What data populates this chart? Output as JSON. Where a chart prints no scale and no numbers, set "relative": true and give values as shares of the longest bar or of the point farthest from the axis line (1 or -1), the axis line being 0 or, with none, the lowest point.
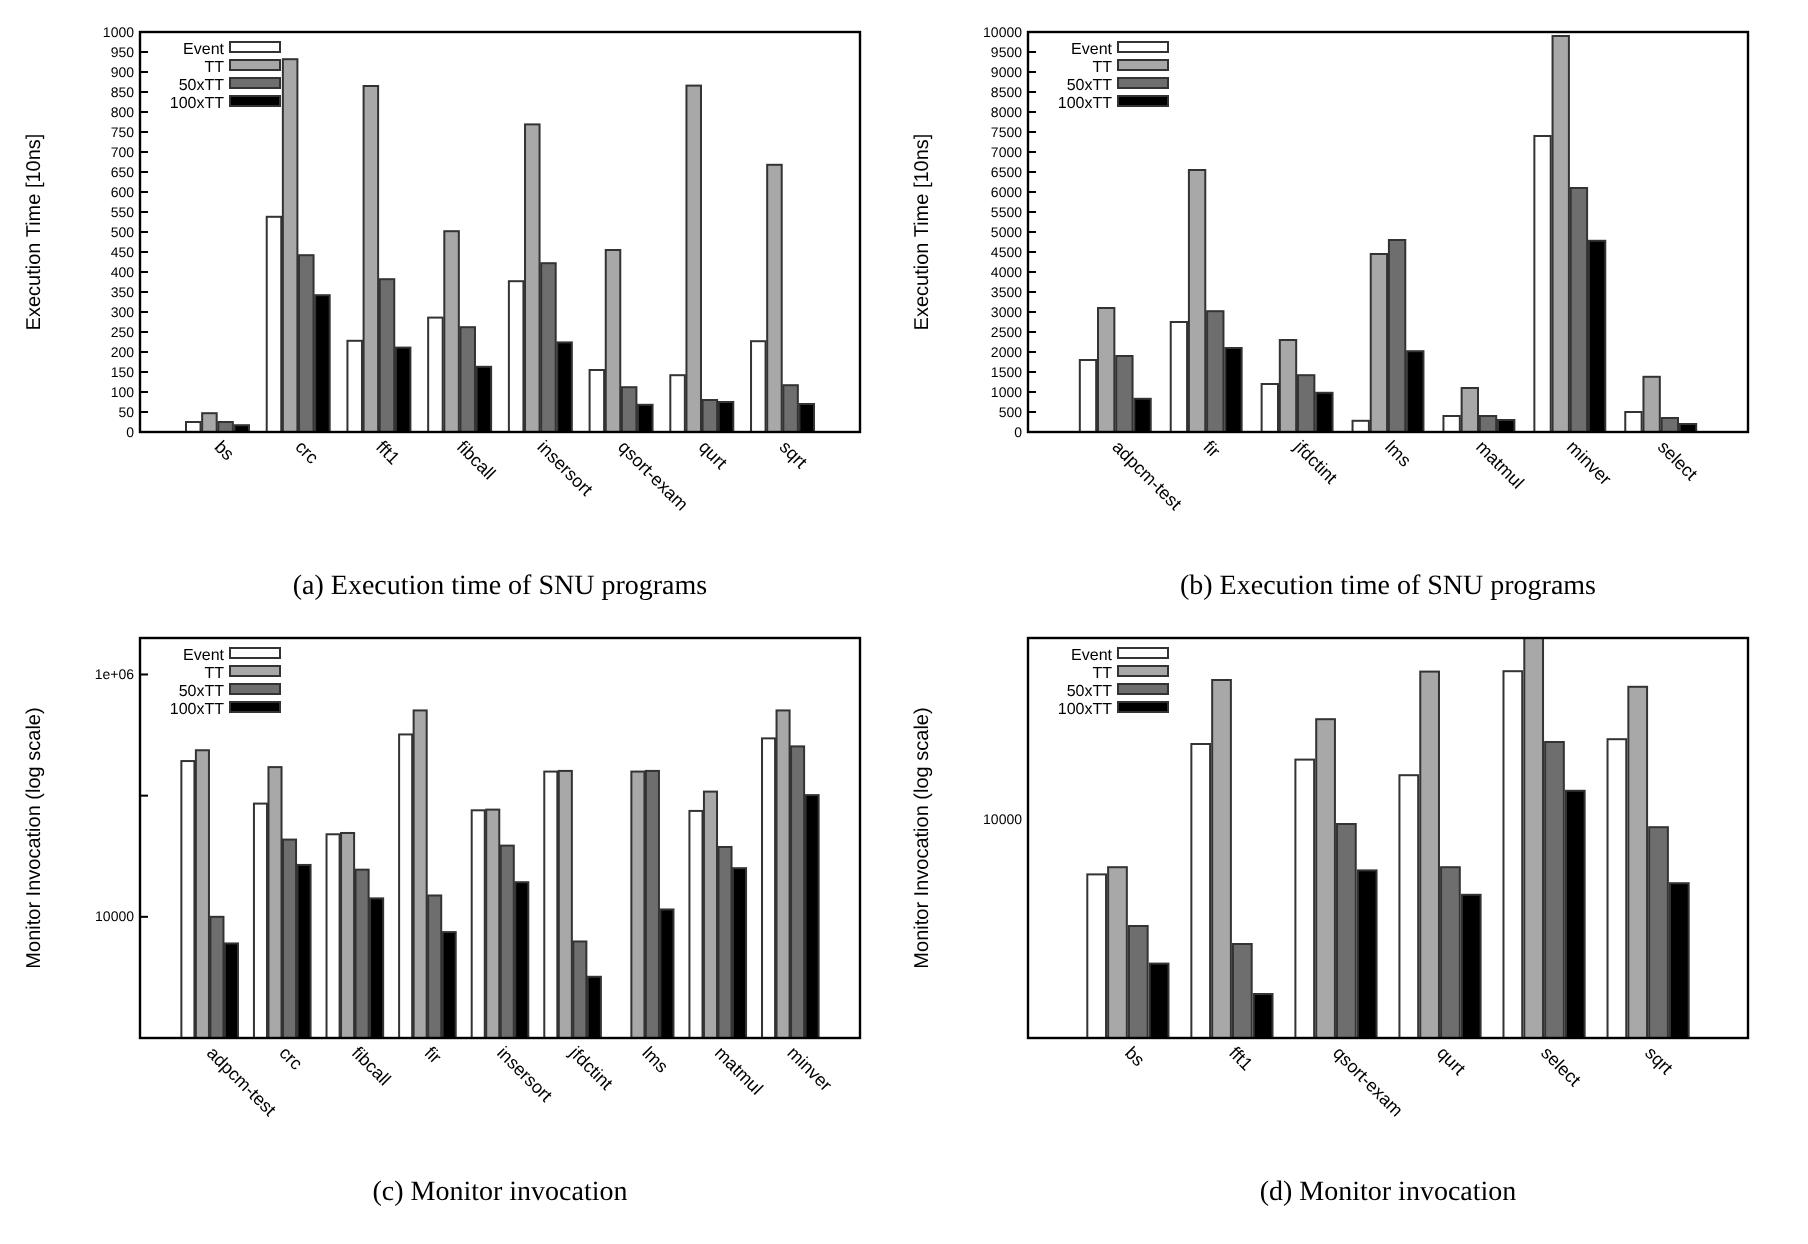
{
  "chart_data": [
    {
      "type": "bar",
      "title": "(a) Execution time of SNU programs",
      "ylabel": "Execution Time [10ns]",
      "categories": [
        "bs",
        "crc",
        "fft1",
        "fibcall",
        "insersort",
        "qsort-exam",
        "qurt",
        "sqrt"
      ],
      "ylim": [
        0,
        1000
      ],
      "yticks": [
        0,
        50,
        100,
        150,
        200,
        250,
        300,
        350,
        400,
        450,
        500,
        550,
        600,
        650,
        700,
        750,
        800,
        850,
        900,
        950,
        1000
      ],
      "legend": "top left",
      "series": [
        {
          "name": "Event",
          "color": "#ffffff",
          "values": [
            25,
            538,
            228,
            286,
            377,
            155,
            142,
            227
          ]
        },
        {
          "name": "TT",
          "color": "#a8a8a8",
          "values": [
            47,
            932,
            865,
            502,
            769,
            455,
            866,
            668
          ]
        },
        {
          "name": "50xTT",
          "color": "#6e6e6e",
          "values": [
            25,
            442,
            382,
            262,
            422,
            112,
            80,
            117
          ]
        },
        {
          "name": "100xTT",
          "color": "#000000",
          "values": [
            17,
            342,
            211,
            163,
            224,
            68,
            75,
            70
          ]
        }
      ]
    },
    {
      "type": "bar",
      "title": "(b) Execution time of SNU programs",
      "ylabel": "Execution Time [10ns]",
      "categories": [
        "adpcm-test",
        "fir",
        "jfdctint",
        "lms",
        "matmul",
        "minver",
        "select"
      ],
      "ylim": [
        0,
        10000
      ],
      "yticks": [
        0,
        500,
        1000,
        1500,
        2000,
        2500,
        3000,
        3500,
        4000,
        4500,
        5000,
        5500,
        6000,
        6500,
        7000,
        7500,
        8000,
        8500,
        9000,
        9500,
        10000
      ],
      "legend": "top left",
      "series": [
        {
          "name": "Event",
          "color": "#ffffff",
          "values": [
            1800,
            2750,
            1200,
            280,
            400,
            7400,
            500
          ]
        },
        {
          "name": "TT",
          "color": "#a8a8a8",
          "values": [
            3100,
            6550,
            2300,
            4450,
            1100,
            9900,
            1380
          ]
        },
        {
          "name": "50xTT",
          "color": "#6e6e6e",
          "values": [
            1900,
            3020,
            1420,
            4800,
            400,
            6100,
            350
          ]
        },
        {
          "name": "100xTT",
          "color": "#000000",
          "values": [
            830,
            2100,
            980,
            2020,
            300,
            4780,
            200
          ]
        }
      ]
    },
    {
      "type": "bar",
      "title": "(c) Monitor invocation",
      "ylabel": "Monitor Invocation (log scale)",
      "categories": [
        "adpcm-test",
        "crc",
        "fibcall",
        "fir",
        "insersort",
        "jfdctint",
        "lms",
        "matmul",
        "minver"
      ],
      "log": "y",
      "ylim": [
        1000,
        2000000
      ],
      "yticks": [
        10000,
        {
          "value": 100000,
          "label": null
        },
        {
          "value": 1000000,
          "label": "1e+06"
        }
      ],
      "legend": "top left",
      "series": [
        {
          "name": "Event",
          "color": "#ffffff",
          "values": [
            193000,
            86000,
            48000,
            320000,
            75700,
            158000,
            null,
            74800,
            297000
          ]
        },
        {
          "name": "TT",
          "color": "#a8a8a8",
          "values": [
            237000,
            172000,
            49200,
            505000,
            76700,
            160000,
            158000,
            108000,
            505000
          ]
        },
        {
          "name": "50xTT",
          "color": "#6e6e6e",
          "values": [
            10000,
            43400,
            24500,
            15000,
            38700,
            6260,
            160000,
            37700,
            255000
          ]
        },
        {
          "name": "100xTT",
          "color": "#000000",
          "values": [
            6030,
            26800,
            14200,
            7480,
            19300,
            3200,
            11500,
            25200,
            101000
          ]
        }
      ]
    },
    {
      "type": "bar",
      "title": "(d) Monitor invocation",
      "ylabel": "Monitor Invocation (log scale)",
      "categories": [
        "bs",
        "fft1",
        "qsort-exam",
        "qurt",
        "select",
        "sqrt"
      ],
      "relative": true,
      "annotations": [
        "10000"
      ],
      "legend": "top left",
      "series": [
        {
          "name": "Event",
          "color": "#ffffff",
          "values": [
            0.409,
            0.735,
            0.696,
            0.657,
            0.917,
            0.747
          ]
        },
        {
          "name": "TT",
          "color": "#a8a8a8",
          "values": [
            0.427,
            0.895,
            0.797,
            0.916,
            1,
            0.878
          ]
        },
        {
          "name": "50xTT",
          "color": "#6e6e6e",
          "values": [
            0.28,
            0.235,
            0.535,
            0.427,
            0.74,
            0.527
          ]
        },
        {
          "name": "100xTT",
          "color": "#000000",
          "values": [
            0.186,
            0.11,
            0.419,
            0.358,
            0.618,
            0.387
          ]
        }
      ]
    }
  ]
}
